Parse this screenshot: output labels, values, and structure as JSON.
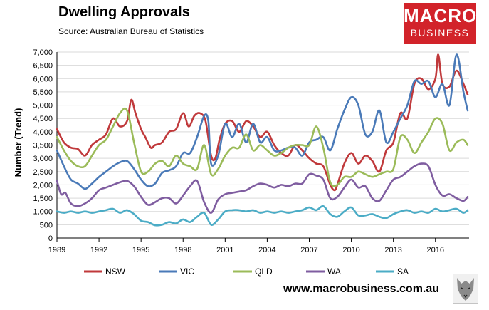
{
  "header": {
    "title": "Dwelling Approvals",
    "source": "Source:   Australian Bureau of Statistics"
  },
  "brand": {
    "line1": "MACRO",
    "line2": "BUSINESS",
    "color": "#d2232a"
  },
  "footer": {
    "url": "www.macrobusiness.com.au"
  },
  "chart_data": {
    "type": "line",
    "title": "Dwelling Approvals",
    "xlabel": "",
    "ylabel": "Number (Trend)",
    "xlim": [
      1989,
      2018.4
    ],
    "ylim": [
      0,
      7000
    ],
    "yticks": [
      "0",
      "500",
      "1,000",
      "1,500",
      "2,000",
      "2,500",
      "3,000",
      "3,500",
      "4,000",
      "4,500",
      "5,000",
      "5,500",
      "6,000",
      "6,500",
      "7,000"
    ],
    "xticks": [
      "1989",
      "1992",
      "1995",
      "1998",
      "2001",
      "2004",
      "2007",
      "2010",
      "2013",
      "2016"
    ],
    "grid": true,
    "legend_position": "bottom",
    "series": [
      {
        "name": "NSW",
        "color": "#c0393b",
        "x": [
          1989,
          1989.5,
          1990,
          1990.5,
          1991,
          1991.5,
          1992,
          1992.5,
          1993,
          1993.5,
          1994,
          1994.3,
          1994.6,
          1995,
          1995.3,
          1995.7,
          1996,
          1996.5,
          1997,
          1997.5,
          1998,
          1998.4,
          1998.8,
          1999.2,
          1999.6,
          2000,
          2000.3,
          2000.6,
          2001,
          2001.5,
          2002,
          2002.5,
          2003,
          2003.5,
          2004,
          2004.5,
          2005,
          2005.5,
          2006,
          2006.5,
          2007,
          2007.5,
          2008,
          2008.5,
          2008.8,
          2009,
          2009.5,
          2010,
          2010.5,
          2011,
          2011.5,
          2012,
          2012.5,
          2013,
          2013.5,
          2014,
          2014.5,
          2015,
          2015.5,
          2016,
          2016.2,
          2016.5,
          2017,
          2017.5,
          2018,
          2018.3
        ],
        "y": [
          4100,
          3600,
          3400,
          3350,
          3100,
          3500,
          3700,
          3900,
          4500,
          4200,
          4400,
          5200,
          4700,
          4100,
          3800,
          3400,
          3500,
          3600,
          4000,
          4100,
          4700,
          4200,
          4600,
          4700,
          4400,
          3100,
          3000,
          3700,
          4300,
          4400,
          4000,
          4400,
          4200,
          3800,
          4000,
          3500,
          3200,
          3100,
          3500,
          3300,
          3000,
          2800,
          2700,
          2000,
          1800,
          2000,
          2800,
          3200,
          2800,
          3100,
          2900,
          2500,
          3300,
          3600,
          4700,
          4500,
          5800,
          6000,
          5600,
          6000,
          6900,
          5800,
          5700,
          6300,
          5800,
          5400
        ]
      },
      {
        "name": "VIC",
        "color": "#4a7ab8",
        "x": [
          1989,
          1989.5,
          1990,
          1990.5,
          1991,
          1991.5,
          1992,
          1992.5,
          1993,
          1993.5,
          1994,
          1994.5,
          1995,
          1995.5,
          1996,
          1996.5,
          1997,
          1997.5,
          1998,
          1998.5,
          1999,
          1999.5,
          1999.8,
          2000,
          2000.5,
          2001,
          2001.5,
          2002,
          2002.5,
          2003,
          2003.5,
          2004,
          2004.5,
          2005,
          2005.5,
          2006,
          2006.5,
          2007,
          2007.5,
          2008,
          2008.5,
          2009,
          2009.5,
          2010,
          2010.5,
          2011,
          2011.5,
          2012,
          2012.5,
          2013,
          2013.5,
          2014,
          2014.5,
          2015,
          2015.5,
          2016,
          2016.5,
          2017,
          2017.5,
          2018,
          2018.3
        ],
        "y": [
          3300,
          2700,
          2200,
          2050,
          1850,
          2050,
          2300,
          2500,
          2700,
          2850,
          2900,
          2600,
          2200,
          1950,
          2050,
          2450,
          2550,
          2700,
          3200,
          3200,
          3800,
          4600,
          4400,
          2800,
          3100,
          4300,
          3800,
          4300,
          3600,
          4300,
          3600,
          3800,
          3300,
          3300,
          3400,
          3400,
          3100,
          3600,
          3700,
          3800,
          3300,
          4100,
          4800,
          5300,
          5000,
          3900,
          4000,
          4800,
          3600,
          4000,
          4500,
          5000,
          5900,
          5800,
          5900,
          5300,
          5800,
          5000,
          6900,
          5500,
          4800
        ]
      },
      {
        "name": "QLD",
        "color": "#9bbb59",
        "x": [
          1989,
          1989.5,
          1990,
          1990.5,
          1991,
          1991.5,
          1992,
          1992.5,
          1993,
          1993.5,
          1994,
          1994.5,
          1995,
          1995.5,
          1996,
          1996.5,
          1997,
          1997.5,
          1998,
          1998.5,
          1999,
          1999.5,
          2000,
          2000.5,
          2001,
          2001.5,
          2002,
          2002.5,
          2003,
          2003.5,
          2004,
          2004.5,
          2005,
          2005.5,
          2006,
          2006.5,
          2007,
          2007.5,
          2008,
          2008.5,
          2009,
          2009.5,
          2010,
          2010.5,
          2011,
          2011.5,
          2012,
          2012.5,
          2013,
          2013.5,
          2014,
          2014.5,
          2015,
          2015.5,
          2016,
          2016.5,
          2017,
          2017.5,
          2018,
          2018.3
        ],
        "y": [
          3800,
          3300,
          2900,
          2700,
          2700,
          3100,
          3500,
          3700,
          4200,
          4700,
          4800,
          3600,
          2500,
          2500,
          2800,
          2900,
          2700,
          3100,
          2800,
          2700,
          2600,
          3500,
          2400,
          2600,
          3100,
          3400,
          3400,
          3900,
          3300,
          3500,
          3300,
          3100,
          3200,
          3400,
          3500,
          3500,
          3500,
          4200,
          3400,
          2100,
          2000,
          2300,
          2300,
          2500,
          2400,
          2300,
          2400,
          2500,
          2600,
          3800,
          3700,
          3200,
          3600,
          4000,
          4500,
          4300,
          3300,
          3600,
          3700,
          3500
        ]
      },
      {
        "name": "WA",
        "color": "#7f5da0",
        "x": [
          1989,
          1989.3,
          1989.6,
          1990,
          1990.5,
          1991,
          1991.5,
          1992,
          1992.5,
          1993,
          1993.5,
          1994,
          1994.5,
          1995,
          1995.5,
          1996,
          1996.5,
          1997,
          1997.5,
          1998,
          1998.5,
          1999,
          1999.5,
          2000,
          2000.5,
          2001,
          2001.5,
          2002,
          2002.5,
          2003,
          2003.5,
          2004,
          2004.5,
          2005,
          2005.5,
          2006,
          2006.5,
          2007,
          2007.5,
          2008,
          2008.5,
          2009,
          2009.5,
          2010,
          2010.5,
          2011,
          2011.5,
          2012,
          2012.5,
          2013,
          2013.5,
          2014,
          2014.5,
          2015,
          2015.5,
          2016,
          2016.5,
          2017,
          2017.5,
          2018,
          2018.3
        ],
        "y": [
          2150,
          1650,
          1700,
          1300,
          1200,
          1300,
          1500,
          1800,
          1900,
          2000,
          2100,
          2150,
          1950,
          1550,
          1250,
          1350,
          1500,
          1500,
          1300,
          1600,
          1950,
          2150,
          1350,
          950,
          1450,
          1650,
          1700,
          1750,
          1800,
          1950,
          2050,
          2000,
          1900,
          2000,
          1950,
          2050,
          2050,
          2400,
          2350,
          2200,
          1500,
          1550,
          1900,
          2200,
          1900,
          1950,
          1500,
          1400,
          1800,
          2200,
          2300,
          2500,
          2700,
          2800,
          2700,
          2000,
          1600,
          1650,
          1500,
          1400,
          1550
        ]
      },
      {
        "name": "SA",
        "color": "#4bacc6",
        "x": [
          1989,
          1989.5,
          1990,
          1990.5,
          1991,
          1991.5,
          1992,
          1992.5,
          1993,
          1993.5,
          1994,
          1994.5,
          1995,
          1995.5,
          1996,
          1996.5,
          1997,
          1997.5,
          1998,
          1998.5,
          1999,
          1999.5,
          2000,
          2000.5,
          2001,
          2001.5,
          2002,
          2002.5,
          2003,
          2003.5,
          2004,
          2004.5,
          2005,
          2005.5,
          2006,
          2006.5,
          2007,
          2007.5,
          2008,
          2008.5,
          2009,
          2009.5,
          2010,
          2010.5,
          2011,
          2011.5,
          2012,
          2012.5,
          2013,
          2013.5,
          2014,
          2014.5,
          2015,
          2015.5,
          2016,
          2016.5,
          2017,
          2017.5,
          2018,
          2018.3
        ],
        "y": [
          1000,
          950,
          1000,
          950,
          1000,
          950,
          1000,
          1050,
          1100,
          950,
          1050,
          900,
          650,
          600,
          480,
          500,
          600,
          550,
          700,
          600,
          800,
          950,
          500,
          700,
          1000,
          1050,
          1050,
          1000,
          1050,
          950,
          1000,
          950,
          1000,
          950,
          1000,
          1050,
          1150,
          1050,
          1200,
          900,
          800,
          1000,
          1150,
          850,
          850,
          900,
          800,
          750,
          900,
          1000,
          1050,
          950,
          1000,
          950,
          1100,
          1000,
          1050,
          1100,
          950,
          1050
        ]
      }
    ]
  }
}
